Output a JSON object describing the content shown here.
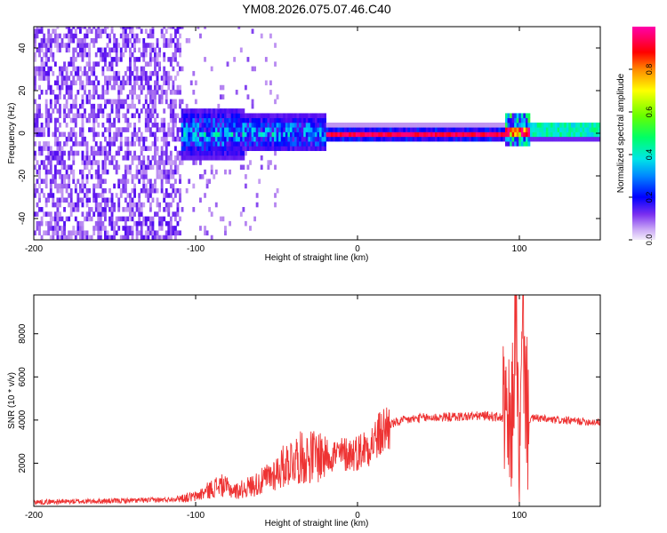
{
  "title": "YM08.2026.075.07.46.C40",
  "chart_data": [
    {
      "type": "heatmap",
      "name": "spectrogram",
      "xlabel": "Height of straight line (km)",
      "ylabel": "Frequency (Hz)",
      "xlim": [
        -200,
        150
      ],
      "ylim": [
        -50,
        50
      ],
      "xticks": [
        -200,
        -100,
        0,
        100
      ],
      "yticks": [
        -40,
        -20,
        0,
        20,
        40
      ],
      "colorbar": {
        "label": "Normalized spectral amplitude",
        "range": [
          0,
          1
        ],
        "ticks": [
          0.0,
          0.2,
          0.4,
          0.6,
          0.8
        ],
        "colors": [
          "#e6d2f7",
          "#b07cf0",
          "#5a0ff0",
          "#0000ff",
          "#00aaff",
          "#00e6e6",
          "#00ff66",
          "#66ff00",
          "#ffff00",
          "#ff8800",
          "#ff0000",
          "#ff0066",
          "#ff00aa"
        ]
      },
      "regions": [
        {
          "x": [
            -200,
            -110
          ],
          "freq": [
            -50,
            50
          ],
          "amplitude": 0.1,
          "description": "broadband noise"
        },
        {
          "x": [
            -110,
            -20
          ],
          "freq": [
            -10,
            10
          ],
          "amplitude": 0.35
        },
        {
          "x": [
            -20,
            90
          ],
          "freq": [
            -1,
            1
          ],
          "amplitude": 0.95
        },
        {
          "x": [
            90,
            105
          ],
          "freq": [
            -5,
            10
          ],
          "amplitude": 0.5
        },
        {
          "x": [
            105,
            150
          ],
          "freq": [
            -2,
            4
          ],
          "amplitude": 0.45
        }
      ]
    },
    {
      "type": "line",
      "name": "snr",
      "xlabel": "Height of straight line (km)",
      "ylabel": "SNR (10 * v/v)",
      "xlim": [
        -200,
        150
      ],
      "ylim": [
        0,
        9800
      ],
      "xticks": [
        -200,
        -100,
        0,
        100
      ],
      "yticks": [
        2000,
        4000,
        6000,
        8000
      ],
      "color": "#ee3333",
      "series": [
        {
          "name": "SNR",
          "x": [
            -200,
            -150,
            -120,
            -100,
            -85,
            -75,
            -60,
            -50,
            -40,
            -30,
            -20,
            -10,
            0,
            10,
            20,
            30,
            40,
            60,
            80,
            90,
            95,
            98,
            100,
            102,
            105,
            110,
            120,
            150
          ],
          "y": [
            200,
            250,
            300,
            450,
            1000,
            700,
            1100,
            1600,
            2200,
            2300,
            2400,
            2400,
            2500,
            3000,
            3800,
            4000,
            4100,
            4150,
            4200,
            4100,
            3000,
            9600,
            500,
            8500,
            4000,
            4100,
            4000,
            3900
          ]
        }
      ]
    }
  ]
}
